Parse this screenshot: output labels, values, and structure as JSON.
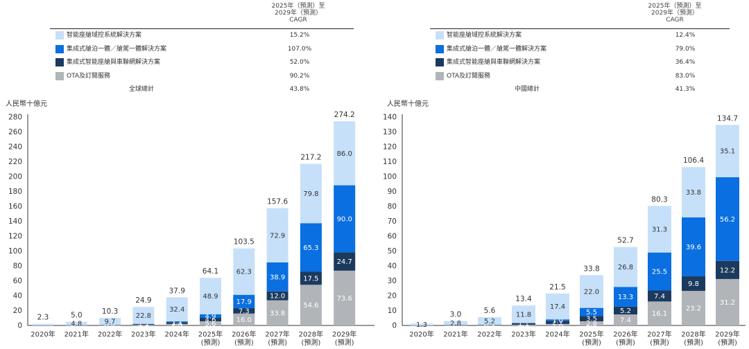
{
  "colors": {
    "smart_cockpit": "#c7e0f9",
    "integrated_cockpit_driving": "#0a6fe0",
    "integrated_cockpit_connectivity": "#1b3a5e",
    "ota": "#b1b4b8"
  },
  "panels": [
    {
      "id": "global",
      "cagr_header": [
        "2025年（預測）至",
        "2029年（預測）",
        "CAGR"
      ],
      "legend": [
        {
          "key": "smart_cockpit",
          "label": "智能座艙域控系統解決方案",
          "cagr": "15.2%"
        },
        {
          "key": "integrated_cockpit_driving",
          "label": "集成式艙泊一體／艙駕一體解決方案",
          "cagr": "107.0%"
        },
        {
          "key": "integrated_cockpit_connectivity",
          "label": "集成式智能座艙與車聯網解決方案",
          "cagr": "52.0%"
        },
        {
          "key": "ota",
          "label": "OTA及訂閱服務",
          "cagr": "90.2%"
        }
      ],
      "total_label": "全球總計",
      "total_cagr": "43.8%",
      "unit": "人民幣十億元"
    },
    {
      "id": "china",
      "cagr_header": [
        "2025年（預測）至",
        "2029年（預測）",
        "CAGR"
      ],
      "legend": [
        {
          "key": "smart_cockpit",
          "label": "智能座艙域控系統解決方案",
          "cagr": "12.4%"
        },
        {
          "key": "integrated_cockpit_driving",
          "label": "集成式艙泊一體／艙駕一體解決方案",
          "cagr": "79.0%"
        },
        {
          "key": "integrated_cockpit_connectivity",
          "label": "集成式智能座艙與車聯網解決方案",
          "cagr": "36.4%"
        },
        {
          "key": "ota",
          "label": "OTA及訂閱服務",
          "cagr": "83.0%"
        }
      ],
      "total_label": "中國總計",
      "total_cagr": "41.3%",
      "unit": "人民幣十億元"
    }
  ],
  "chart_data": [
    {
      "type": "bar",
      "stacked": true,
      "title": "全球",
      "ylabel": "人民幣十億元",
      "ylim": [
        0,
        280
      ],
      "yticks": [
        0,
        20,
        40,
        60,
        80,
        100,
        120,
        140,
        160,
        180,
        200,
        220,
        240,
        260,
        280
      ],
      "categories": [
        [
          "2020年"
        ],
        [
          "2021年"
        ],
        [
          "2022年"
        ],
        [
          "2023年"
        ],
        [
          "2024年"
        ],
        [
          "2025年",
          "(預測)"
        ],
        [
          "2026年",
          "(預測)"
        ],
        [
          "2027年",
          "(預測)"
        ],
        [
          "2028年",
          "(預測)"
        ],
        [
          "2029年",
          "(預測)"
        ]
      ],
      "series": [
        {
          "key": "ota",
          "name": "OTA及訂閱服務",
          "values": [
            null,
            0.1,
            0.2,
            0.9,
            2.0,
            5.6,
            16.0,
            33.8,
            54.6,
            73.6
          ],
          "labels": [
            "",
            "0.1",
            "0.2",
            "0.9",
            "2.0",
            "5.6",
            "16.0",
            "33.8",
            "54.6",
            "73.6"
          ]
        },
        {
          "key": "integrated_cockpit_connectivity",
          "name": "集成式智能座艙與車聯網解決方案",
          "values": [
            null,
            0.1,
            0.4,
            1.2,
            2.4,
            4.6,
            7.3,
            12.0,
            17.5,
            24.7
          ],
          "labels": [
            "",
            "0.1",
            "0.4",
            "1.2",
            "2.4",
            "4.6",
            "7.3",
            "12.0",
            "17.5",
            "24.7"
          ]
        },
        {
          "key": "integrated_cockpit_driving",
          "name": "集成式艙泊一體／艙駕一體解決方案",
          "values": [
            null,
            null,
            null,
            null,
            1.1,
            4.9,
            17.9,
            38.9,
            65.3,
            90.0
          ],
          "labels": [
            "",
            "",
            "",
            "",
            "1.1",
            "4.9",
            "17.9",
            "38.9",
            "65.3",
            "90.0"
          ]
        },
        {
          "key": "smart_cockpit",
          "name": "智能座艙域控系統解決方案",
          "values": [
            2.3,
            4.8,
            9.7,
            22.8,
            32.4,
            48.9,
            62.3,
            72.9,
            79.8,
            86.0
          ],
          "labels": [
            "",
            "4.8",
            "9.7",
            "22.8",
            "32.4",
            "48.9",
            "62.3",
            "72.9",
            "79.8",
            "86.0"
          ]
        }
      ],
      "totals": [
        "2.3",
        "5.0",
        "10.3",
        "24.9",
        "37.9",
        "64.1",
        "103.5",
        "157.6",
        "217.2",
        "274.2"
      ]
    },
    {
      "type": "bar",
      "stacked": true,
      "title": "中國",
      "ylabel": "人民幣十億元",
      "ylim": [
        0,
        140
      ],
      "yticks": [
        0,
        10,
        20,
        30,
        40,
        50,
        60,
        70,
        80,
        90,
        100,
        110,
        120,
        130,
        140
      ],
      "categories": [
        [
          "2020年"
        ],
        [
          "2021年"
        ],
        [
          "2022年"
        ],
        [
          "2023年"
        ],
        [
          "2024年"
        ],
        [
          "2025年",
          "(預測)"
        ],
        [
          "2026年",
          "(預測)"
        ],
        [
          "2027年",
          "(預測)"
        ],
        [
          "2028年",
          "(預測)"
        ],
        [
          "2029年",
          "(預測)"
        ]
      ],
      "series": [
        {
          "key": "ota",
          "name": "OTA及訂閱服務",
          "values": [
            null,
            0.1,
            0.1,
            0.5,
            1.0,
            2.8,
            7.4,
            16.1,
            23.2,
            31.2
          ],
          "labels": [
            "",
            "0.1",
            "0.1",
            "0.5",
            "1.0",
            "2.8",
            "7.4",
            "16.1",
            "23.2",
            "31.2"
          ]
        },
        {
          "key": "integrated_cockpit_connectivity",
          "name": "集成式智能座艙與車聯網解決方案",
          "values": [
            null,
            0.1,
            0.3,
            1.1,
            2.1,
            3.5,
            5.2,
            7.4,
            9.8,
            12.2
          ],
          "labels": [
            "",
            "0.1",
            "0.3",
            "1.1",
            "2.1",
            "3.5",
            "5.2",
            "7.4",
            "9.8",
            "12.2"
          ]
        },
        {
          "key": "integrated_cockpit_driving",
          "name": "集成式艙泊一體／艙駕一體解決方案",
          "values": [
            null,
            null,
            null,
            null,
            1.0,
            5.5,
            13.3,
            25.5,
            39.6,
            56.2
          ],
          "labels": [
            "",
            "",
            "",
            "",
            "1.0",
            "5.5",
            "13.3",
            "25.5",
            "39.6",
            "56.2"
          ]
        },
        {
          "key": "smart_cockpit",
          "name": "智能座艙域控系統解決方案",
          "values": [
            1.3,
            2.8,
            5.2,
            11.8,
            17.4,
            22.0,
            26.8,
            31.3,
            33.8,
            35.1
          ],
          "labels": [
            "1.3",
            "2.8",
            "5.2",
            "11.8",
            "17.4",
            "22.0",
            "26.8",
            "31.3",
            "33.8",
            "35.1"
          ]
        }
      ],
      "totals": [
        "",
        "3.0",
        "5.6",
        "13.4",
        "21.5",
        "33.8",
        "52.7",
        "80.3",
        "106.4",
        "134.7"
      ]
    }
  ]
}
